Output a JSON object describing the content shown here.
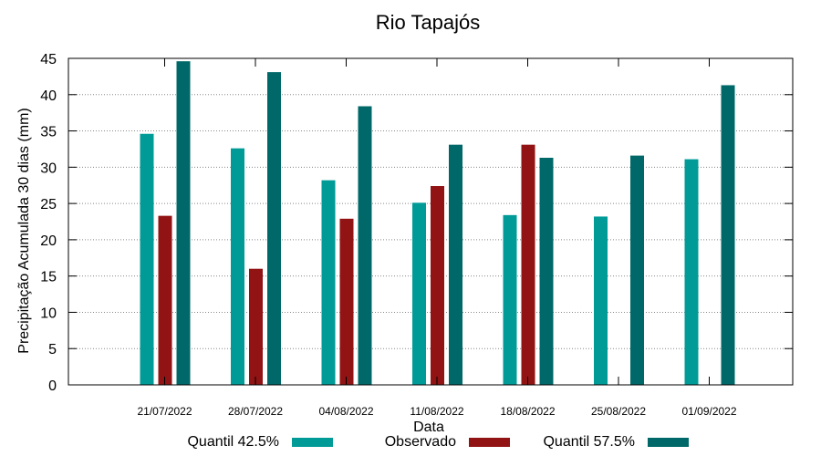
{
  "chart_data": {
    "type": "bar",
    "title": "Rio Tapajós",
    "xlabel": "Data",
    "ylabel": "Precipitação Acumulada 30 dias (mm)",
    "ylim": [
      0,
      45
    ],
    "yticks": [
      0,
      5,
      10,
      15,
      20,
      25,
      30,
      35,
      40,
      45
    ],
    "grid": true,
    "legend_position": "bottom",
    "categories": [
      "21/07/2022",
      "28/07/2022",
      "04/08/2022",
      "11/08/2022",
      "18/08/2022",
      "25/08/2022",
      "01/09/2022"
    ],
    "series": [
      {
        "name": "Quantil 42.5%",
        "color": "#009b97",
        "values": [
          34.6,
          32.6,
          28.2,
          25.1,
          23.4,
          23.2,
          31.1
        ]
      },
      {
        "name": "Observado",
        "color": "#921313",
        "values": [
          23.3,
          16.0,
          22.9,
          27.4,
          33.1,
          null,
          null
        ]
      },
      {
        "name": "Quantil 57.5%",
        "color": "#006868",
        "values": [
          44.6,
          43.1,
          38.4,
          33.1,
          31.3,
          31.6,
          41.3
        ]
      }
    ]
  }
}
